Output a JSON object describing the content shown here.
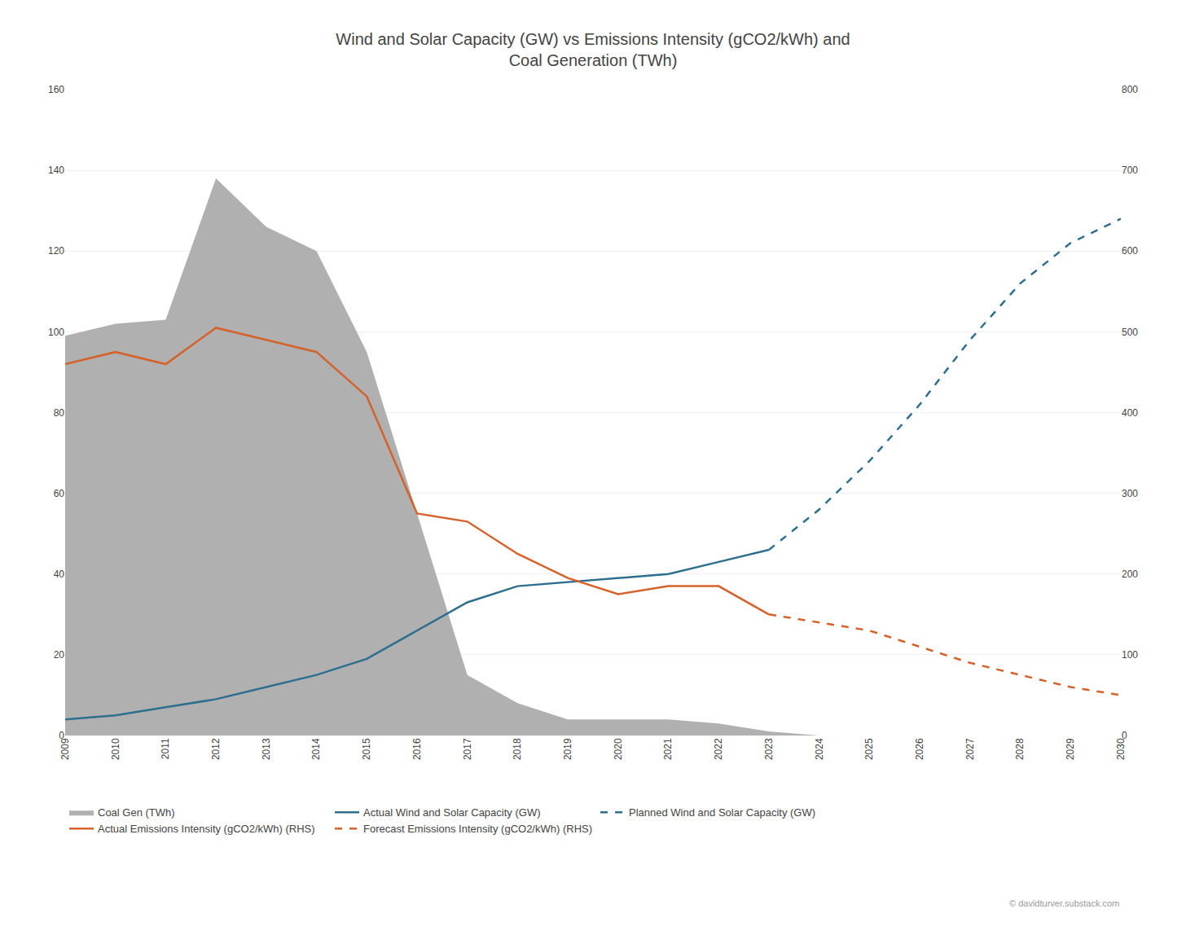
{
  "chart_data": {
    "type": "line",
    "title": "Wind and Solar Capacity (GW) vs Emissions Intensity (gCO2/kWh) and\nCoal Generation (TWh)",
    "series": [
      {
        "name": "Coal Gen (TWh)",
        "type": "area",
        "color": "#b0b0b0",
        "x": [
          2009,
          2010,
          2011,
          2012,
          2013,
          2014,
          2015,
          2016,
          2017,
          2018,
          2019,
          2020,
          2021,
          2022,
          2023,
          2024
        ],
        "values": [
          99,
          102,
          103,
          138,
          126,
          120,
          95,
          55,
          15,
          8,
          4,
          4,
          4,
          3,
          1,
          0
        ]
      },
      {
        "name": "Actual Wind and Solar Capacity (GW)",
        "type": "line",
        "color": "#2e6f8e",
        "line_style": "solid",
        "x": [
          2009,
          2010,
          2011,
          2012,
          2013,
          2014,
          2015,
          2016,
          2017,
          2018,
          2019,
          2020,
          2021,
          2022,
          2023
        ],
        "values": [
          4,
          5,
          7,
          9,
          12,
          15,
          19,
          26,
          33,
          37,
          38,
          39,
          40,
          43,
          46
        ]
      },
      {
        "name": "Planned Wind and Solar Capacity (GW)",
        "type": "line",
        "color": "#2e6f8e",
        "line_style": "dashed",
        "x": [
          2023,
          2024,
          2025,
          2026,
          2027,
          2028,
          2029,
          2030
        ],
        "values": [
          46,
          56,
          68,
          82,
          98,
          112,
          122,
          128
        ]
      },
      {
        "name": "Actual Emissions Intensity (gCO2/kWh) (RHS)",
        "type": "line",
        "color": "#d4622a",
        "line_style": "solid",
        "axis": "y2",
        "x": [
          2009,
          2010,
          2011,
          2012,
          2013,
          2014,
          2015,
          2016,
          2017,
          2018,
          2019,
          2020,
          2021,
          2022,
          2023
        ],
        "values": [
          460,
          475,
          460,
          505,
          490,
          475,
          420,
          275,
          265,
          225,
          195,
          175,
          185,
          185,
          150
        ]
      },
      {
        "name": "Forecast Emissions Intensity (gCO2/kWh) (RHS)",
        "type": "line",
        "color": "#d4622a",
        "line_style": "dashed",
        "axis": "y2",
        "x": [
          2023,
          2024,
          2025,
          2026,
          2027,
          2028,
          2029,
          2030
        ],
        "values": [
          150,
          140,
          130,
          110,
          90,
          75,
          60,
          50
        ]
      }
    ],
    "xlim": [
      2009,
      2030
    ],
    "xticks": [
      2009,
      2010,
      2011,
      2012,
      2013,
      2014,
      2015,
      2016,
      2017,
      2018,
      2019,
      2020,
      2021,
      2022,
      2023,
      2024,
      2025,
      2026,
      2027,
      2028,
      2029,
      2030
    ],
    "ylim": [
      0,
      160
    ],
    "yticks": [
      0,
      20,
      40,
      60,
      80,
      100,
      120,
      140,
      160
    ],
    "y2lim": [
      0,
      800
    ],
    "y2ticks": [
      0,
      100,
      200,
      300,
      400,
      500,
      600,
      700,
      800
    ],
    "grid": true,
    "legend": "bottom",
    "annotations": [
      "© davidturver.substack.com"
    ]
  }
}
